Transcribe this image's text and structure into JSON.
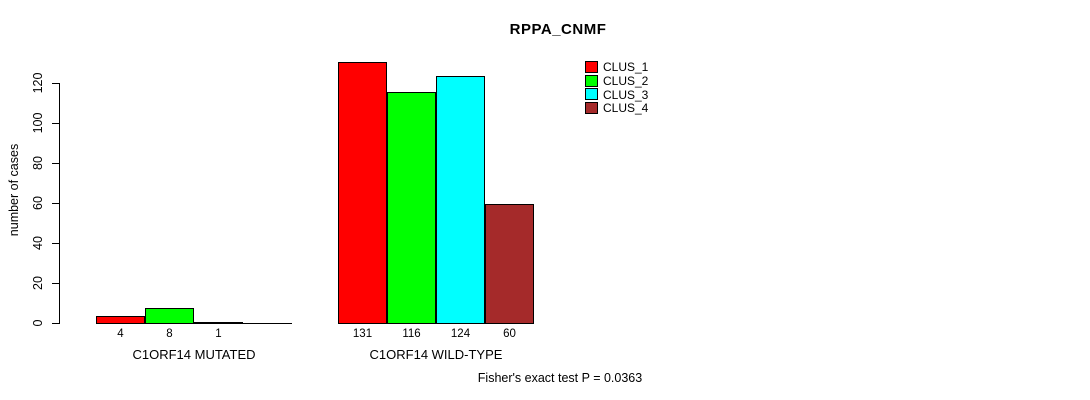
{
  "footer": {
    "note": "Fisher's exact test P = 0.0363"
  },
  "chart_data": {
    "type": "bar",
    "title": "RPPA_CNMF",
    "xlabel": "",
    "ylabel": "number of cases",
    "ylim": [
      0,
      140
    ],
    "y_ticks": [
      0,
      20,
      40,
      60,
      80,
      100,
      120
    ],
    "grid": false,
    "legend_position": "top-right",
    "legend": [
      {
        "label": "CLUS_1",
        "color": "#FF0000"
      },
      {
        "label": "CLUS_2",
        "color": "#00FF00"
      },
      {
        "label": "CLUS_3",
        "color": "#00FFFF"
      },
      {
        "label": "CLUS_4",
        "color": "#A52A2A"
      }
    ],
    "groups": [
      {
        "label": "C1ORF14 MUTATED",
        "values": [
          4,
          8,
          1,
          0
        ],
        "bar_labels": [
          "4",
          "8",
          "1",
          ""
        ]
      },
      {
        "label": "C1ORF14 WILD-TYPE",
        "values": [
          131,
          116,
          124,
          60
        ],
        "bar_labels": [
          "131",
          "116",
          "124",
          "60"
        ]
      }
    ]
  }
}
